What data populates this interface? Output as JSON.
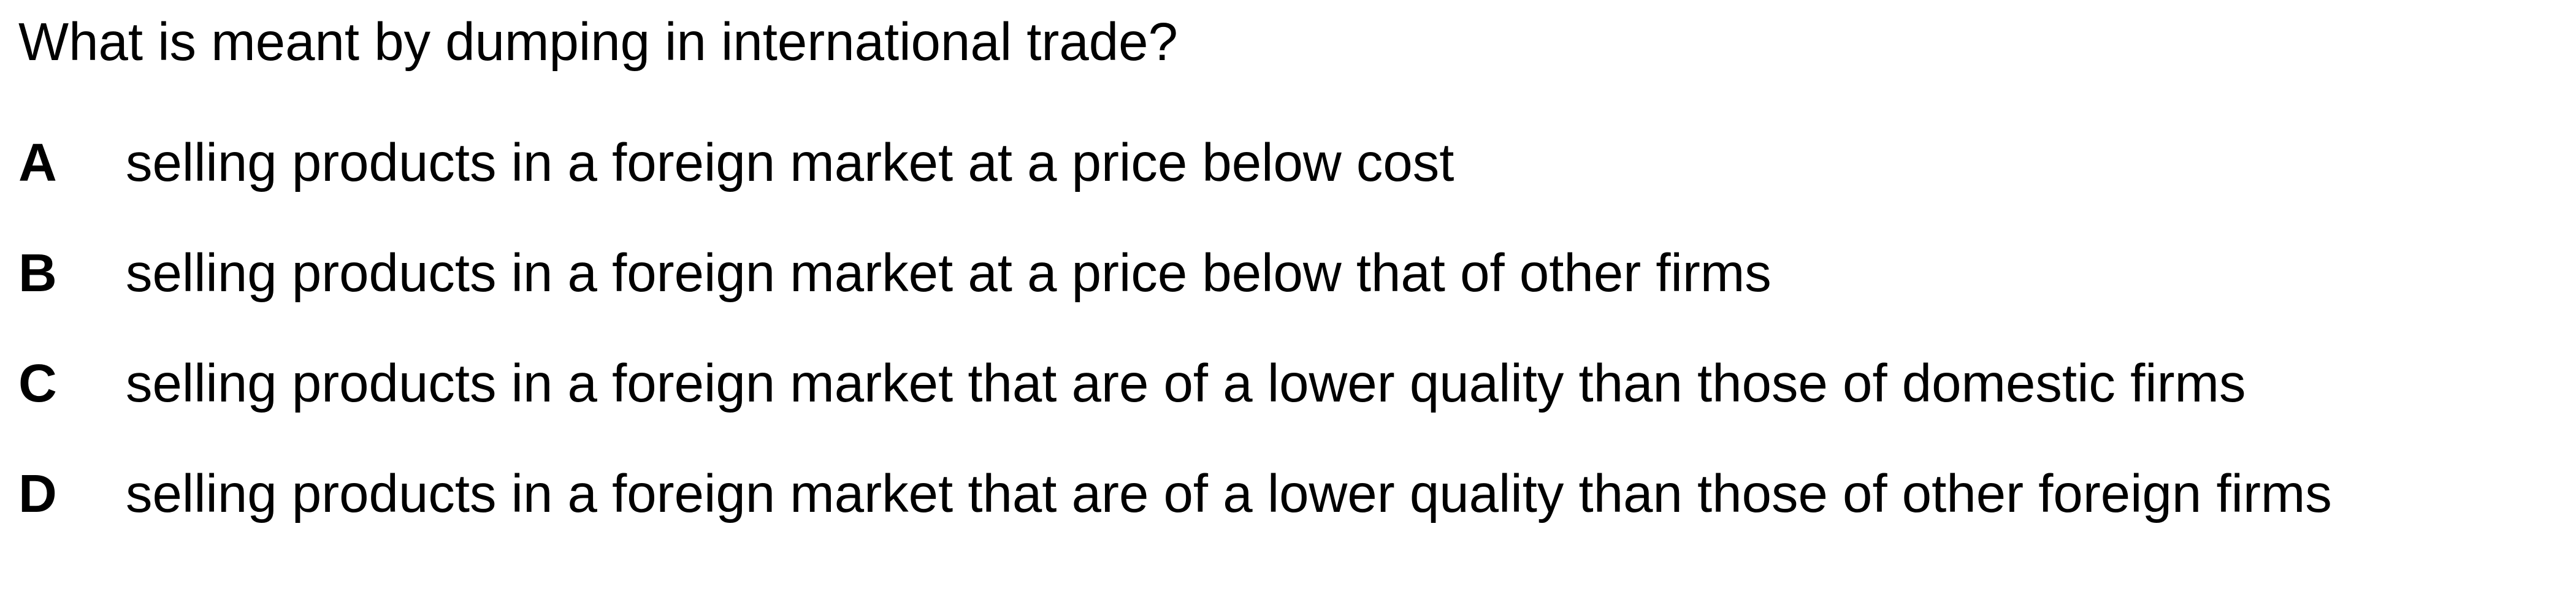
{
  "question": "What is meant by dumping in international trade?",
  "options": [
    {
      "letter": "A",
      "text": "selling products in a foreign market at a price below cost"
    },
    {
      "letter": "B",
      "text": "selling products in a foreign market at a price below that of other firms"
    },
    {
      "letter": "C",
      "text": "selling products in a foreign market that are of a lower quality than those of domestic firms"
    },
    {
      "letter": "D",
      "text": "selling products in a foreign market that are of a lower quality than those of other foreign firms"
    }
  ]
}
